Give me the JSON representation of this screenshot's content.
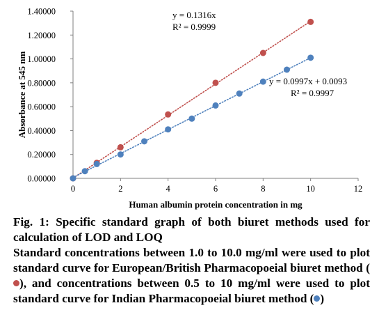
{
  "chart_data": {
    "type": "scatter",
    "xlabel": "Human albumin protein concentration in mg",
    "ylabel": "Absorbance at 545 nm",
    "xlim": [
      0,
      12
    ],
    "ylim": [
      0,
      1.4
    ],
    "x_ticks": [
      "0",
      "2",
      "4",
      "6",
      "8",
      "10",
      "12"
    ],
    "y_ticks": [
      "0.00000",
      "0.20000",
      "0.40000",
      "0.60000",
      "0.80000",
      "1.00000",
      "1.20000",
      "1.40000"
    ],
    "grid": false,
    "legend": "none",
    "series": [
      {
        "color": "#c0504d",
        "trendline": "linear, dotted",
        "x": [
          0,
          1,
          2,
          4,
          6,
          8,
          10
        ],
        "y": [
          0.0,
          0.13,
          0.26,
          0.535,
          0.8,
          1.05,
          1.31
        ],
        "equation": "y = 0.1316x",
        "r2": "R² = 0.9999"
      },
      {
        "color": "#4f81bd",
        "trendline": "linear, dotted",
        "x": [
          0,
          0.5,
          1,
          2,
          3,
          4,
          5,
          6,
          7,
          8,
          9,
          10
        ],
        "y": [
          0.0,
          0.06,
          0.12,
          0.2,
          0.31,
          0.41,
          0.5,
          0.61,
          0.71,
          0.81,
          0.91,
          1.01
        ],
        "equation": "y = 0.0997x + 0.0093",
        "r2": "R² = 0.9997"
      }
    ]
  },
  "caption": {
    "fig_title": "Fig. 1: Specific standard graph of both biuret methods used for calculation of LOD and LOQ",
    "text_part1": "Standard concentrations between 1.0 to 10.0 mg/ml were used to plot standard curve for European/British Pharmacopoeial biuret method (",
    "text_part2": "), and concentrations between 0.5 to 10 mg/ml were used to plot standard curve for Indian Pharmacopoeial biuret method (",
    "text_part3": ")"
  }
}
